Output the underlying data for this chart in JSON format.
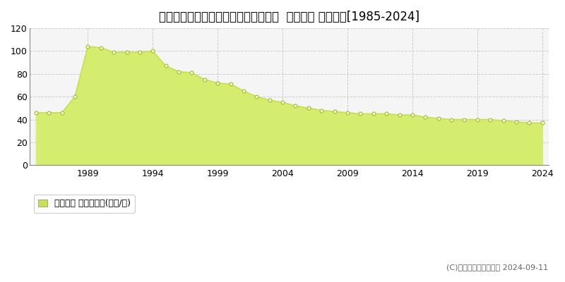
{
  "title": "埼玉県狭山市狭山台４丁目１７番２外  地価公示 地価推移[1985-2024]",
  "years": [
    1985,
    1986,
    1987,
    1988,
    1989,
    1990,
    1991,
    1992,
    1993,
    1994,
    1995,
    1996,
    1997,
    1998,
    1999,
    2000,
    2001,
    2002,
    2003,
    2004,
    2005,
    2006,
    2007,
    2008,
    2009,
    2010,
    2011,
    2012,
    2013,
    2014,
    2015,
    2016,
    2017,
    2018,
    2019,
    2020,
    2021,
    2022,
    2023,
    2024
  ],
  "values": [
    46,
    46,
    46,
    60,
    104,
    103,
    99,
    99,
    99,
    100,
    87,
    82,
    81,
    75,
    72,
    71,
    65,
    60,
    57,
    55,
    52,
    50,
    48,
    47,
    46,
    45,
    45,
    45,
    44,
    44,
    42,
    41,
    40,
    40,
    40,
    40,
    39,
    38,
    37,
    37
  ],
  "fill_color": "#d4ed6e",
  "line_color": "#c5e050",
  "marker_facecolor": "#ffffff",
  "marker_edgecolor": "#aac830",
  "ylim": [
    0,
    120
  ],
  "yticks": [
    0,
    20,
    40,
    60,
    80,
    100,
    120
  ],
  "xticks": [
    1989,
    1994,
    1999,
    2004,
    2009,
    2014,
    2019,
    2024
  ],
  "grid_color": "#cccccc",
  "bg_color": "#ffffff",
  "plot_bg_color": "#f5f5f5",
  "legend_label": "地価公示 平均坪単価(万円/坪)",
  "legend_marker_color": "#c8e050",
  "copyright_text": "(C)土地価格ドットコム 2024-09-11",
  "title_fontsize": 12,
  "tick_fontsize": 9,
  "legend_fontsize": 9,
  "copyright_fontsize": 8
}
